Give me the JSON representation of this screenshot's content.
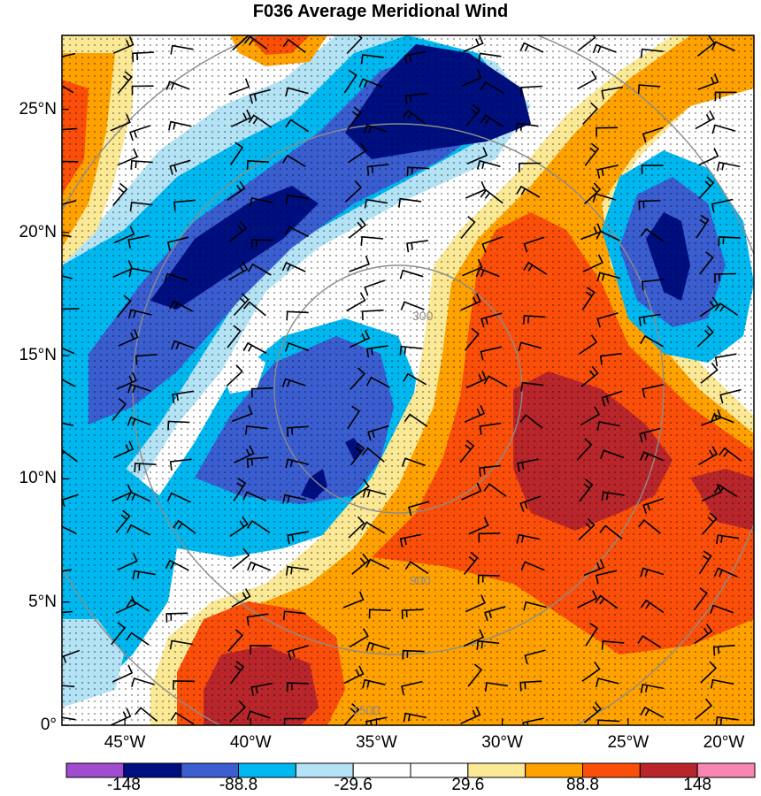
{
  "title": "F036 Average Meridional Wind",
  "map": {
    "lon_range": [
      -47.5,
      -20
    ],
    "lat_range": [
      0,
      28
    ],
    "lat_ticks": [
      {
        "value": 0,
        "label": "0°"
      },
      {
        "value": 5,
        "label": "5°N"
      },
      {
        "value": 10,
        "label": "10°N"
      },
      {
        "value": 15,
        "label": "15°N"
      },
      {
        "value": 20,
        "label": "20°N"
      },
      {
        "value": 25,
        "label": "25°N"
      }
    ],
    "lon_ticks": [
      {
        "value": -45,
        "label": "45°W"
      },
      {
        "value": -40,
        "label": "40°W"
      },
      {
        "value": -35,
        "label": "35°W"
      },
      {
        "value": -30,
        "label": "30°W"
      },
      {
        "value": -25,
        "label": "25°W"
      },
      {
        "value": -20,
        "label": "20°W"
      }
    ],
    "range_ring_labels": [
      "300",
      "900",
      "1500"
    ],
    "range_ring_center": {
      "lon": -31.5,
      "lat": 14.5
    },
    "stippling": "dotted areas",
    "wind_barbs": "overlay"
  },
  "colorbar": {
    "colors": [
      "#a14bd1",
      "#000f80",
      "#3a5dd0",
      "#00b8f0",
      "#b3e3f5",
      "#ffffff",
      "#ffffff",
      "#fbe996",
      "#ffa200",
      "#fb4f09",
      "#b8262b",
      "#f787b2"
    ],
    "labels": [
      {
        "index": 1,
        "text": "-148"
      },
      {
        "index": 3,
        "text": "-88.8"
      },
      {
        "index": 5,
        "text": "-29.6"
      },
      {
        "index": 7,
        "text": "29.6"
      },
      {
        "index": 9,
        "text": "88.8"
      },
      {
        "index": 11,
        "text": "148"
      }
    ]
  }
}
